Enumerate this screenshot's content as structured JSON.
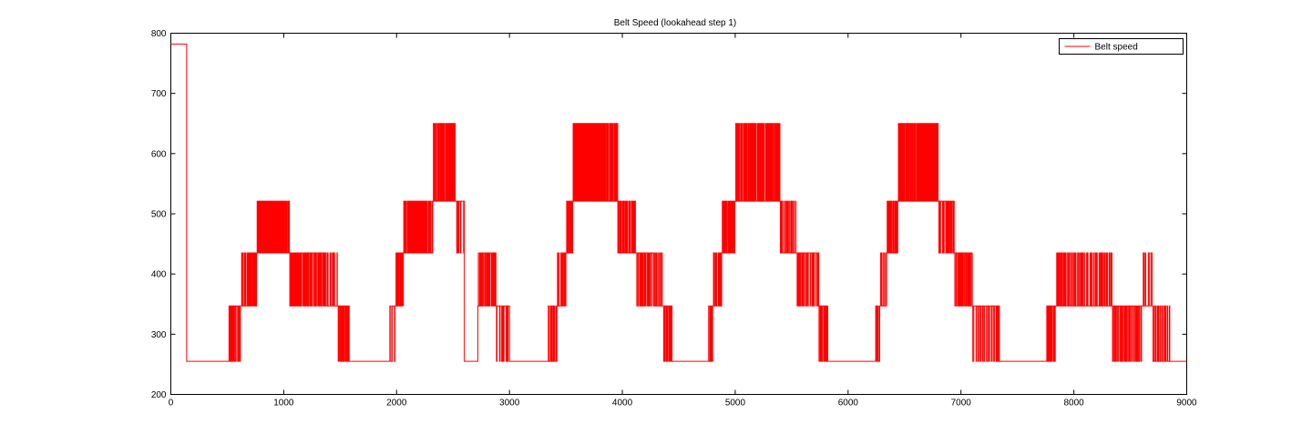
{
  "chart_data": {
    "type": "line",
    "title": "Belt Speed (lookahead step 1)",
    "xlabel": "",
    "ylabel": "",
    "xlim": [
      0,
      9000
    ],
    "ylim": [
      200,
      800
    ],
    "xticks": [
      0,
      1000,
      2000,
      3000,
      4000,
      5000,
      6000,
      7000,
      8000,
      9000
    ],
    "yticks": [
      200,
      300,
      400,
      500,
      600,
      700,
      800
    ],
    "grid": false,
    "legend_position": "top-right",
    "levels": [
      255,
      347,
      435,
      521,
      650,
      782
    ],
    "series": [
      {
        "name": "Belt speed",
        "color": "#ff0000",
        "segments": [
          {
            "x0": 0,
            "x1": 140,
            "base": 782
          },
          {
            "x0": 140,
            "x1": 510,
            "base": 255
          },
          {
            "x0": 510,
            "x1": 560,
            "base": 255,
            "alt": 347,
            "n": 5
          },
          {
            "x0": 560,
            "x1": 620,
            "base": 347,
            "alt": 255,
            "n": 4
          },
          {
            "x0": 620,
            "x1": 690,
            "base": 347,
            "alt": 435,
            "n": 6
          },
          {
            "x0": 690,
            "x1": 760,
            "base": 435,
            "alt": 347,
            "n": 8
          },
          {
            "x0": 760,
            "x1": 820,
            "base": 435,
            "alt": 521,
            "n": 7
          },
          {
            "x0": 820,
            "x1": 950,
            "base": 435,
            "alt": 521,
            "n": 18
          },
          {
            "x0": 950,
            "x1": 1050,
            "base": 435,
            "alt": 521,
            "n": 12
          },
          {
            "x0": 1050,
            "x1": 1120,
            "base": 435,
            "alt": 347,
            "n": 9
          },
          {
            "x0": 1120,
            "x1": 1360,
            "base": 435,
            "alt": 347,
            "n": 22
          },
          {
            "x0": 1360,
            "x1": 1480,
            "base": 347,
            "alt": 435,
            "n": 6
          },
          {
            "x0": 1480,
            "x1": 1580,
            "base": 347,
            "alt": 255,
            "n": 10
          },
          {
            "x0": 1580,
            "x1": 1940,
            "base": 255
          },
          {
            "x0": 1940,
            "x1": 1990,
            "base": 347,
            "alt": 255,
            "n": 2
          },
          {
            "x0": 1990,
            "x1": 2060,
            "base": 347,
            "alt": 435,
            "n": 6
          },
          {
            "x0": 2060,
            "x1": 2140,
            "base": 435,
            "alt": 521,
            "n": 8
          },
          {
            "x0": 2140,
            "x1": 2260,
            "base": 521,
            "alt": 435,
            "n": 16
          },
          {
            "x0": 2260,
            "x1": 2320,
            "base": 435,
            "alt": 521,
            "n": 5
          },
          {
            "x0": 2320,
            "x1": 2380,
            "base": 521,
            "alt": 650,
            "n": 6
          },
          {
            "x0": 2380,
            "x1": 2520,
            "base": 521,
            "alt": 650,
            "n": 16
          },
          {
            "x0": 2520,
            "x1": 2600,
            "base": 521,
            "alt": 435,
            "n": 4
          },
          {
            "x0": 2600,
            "x1": 2720,
            "base": 255
          },
          {
            "x0": 2720,
            "x1": 2760,
            "base": 347,
            "alt": 435,
            "n": 4
          },
          {
            "x0": 2760,
            "x1": 2880,
            "base": 435,
            "alt": 347,
            "n": 10
          },
          {
            "x0": 2880,
            "x1": 3000,
            "base": 347,
            "alt": 255,
            "n": 6
          },
          {
            "x0": 3000,
            "x1": 3340,
            "base": 255
          },
          {
            "x0": 3340,
            "x1": 3420,
            "base": 255,
            "alt": 347,
            "n": 6
          },
          {
            "x0": 3420,
            "x1": 3500,
            "base": 347,
            "alt": 435,
            "n": 6
          },
          {
            "x0": 3500,
            "x1": 3560,
            "base": 435,
            "alt": 521,
            "n": 6
          },
          {
            "x0": 3560,
            "x1": 3700,
            "base": 521,
            "alt": 650,
            "n": 16
          },
          {
            "x0": 3700,
            "x1": 3850,
            "base": 521,
            "alt": 650,
            "n": 22
          },
          {
            "x0": 3850,
            "x1": 3960,
            "base": 521,
            "alt": 650,
            "n": 10
          },
          {
            "x0": 3960,
            "x1": 4120,
            "base": 435,
            "alt": 521,
            "n": 14
          },
          {
            "x0": 4120,
            "x1": 4280,
            "base": 435,
            "alt": 347,
            "n": 12
          },
          {
            "x0": 4280,
            "x1": 4360,
            "base": 347,
            "alt": 435,
            "n": 5
          },
          {
            "x0": 4360,
            "x1": 4440,
            "base": 347,
            "alt": 255,
            "n": 8
          },
          {
            "x0": 4440,
            "x1": 4760,
            "base": 255
          },
          {
            "x0": 4760,
            "x1": 4800,
            "base": 255,
            "alt": 347,
            "n": 4
          },
          {
            "x0": 4800,
            "x1": 4880,
            "base": 347,
            "alt": 435,
            "n": 6
          },
          {
            "x0": 4880,
            "x1": 4960,
            "base": 435,
            "alt": 521,
            "n": 8
          },
          {
            "x0": 4960,
            "x1": 5000,
            "base": 521,
            "alt": 435,
            "n": 4
          },
          {
            "x0": 5000,
            "x1": 5400,
            "base": 521,
            "alt": 650,
            "n": 40
          },
          {
            "x0": 5400,
            "x1": 5540,
            "base": 435,
            "alt": 521,
            "n": 10
          },
          {
            "x0": 5540,
            "x1": 5740,
            "base": 435,
            "alt": 347,
            "n": 12
          },
          {
            "x0": 5740,
            "x1": 5820,
            "base": 347,
            "alt": 255,
            "n": 8
          },
          {
            "x0": 5820,
            "x1": 6240,
            "base": 255
          },
          {
            "x0": 6240,
            "x1": 6280,
            "base": 255,
            "alt": 347,
            "n": 4
          },
          {
            "x0": 6280,
            "x1": 6340,
            "base": 347,
            "alt": 435,
            "n": 4
          },
          {
            "x0": 6340,
            "x1": 6440,
            "base": 435,
            "alt": 521,
            "n": 10
          },
          {
            "x0": 6440,
            "x1": 6800,
            "base": 521,
            "alt": 650,
            "n": 40
          },
          {
            "x0": 6800,
            "x1": 6940,
            "base": 521,
            "alt": 435,
            "n": 10
          },
          {
            "x0": 6940,
            "x1": 7100,
            "base": 435,
            "alt": 347,
            "n": 14
          },
          {
            "x0": 7100,
            "x1": 7340,
            "base": 347,
            "alt": 255,
            "n": 12
          },
          {
            "x0": 7340,
            "x1": 7760,
            "base": 255
          },
          {
            "x0": 7760,
            "x1": 7840,
            "base": 347,
            "alt": 255,
            "n": 8
          },
          {
            "x0": 7840,
            "x1": 7960,
            "base": 347,
            "alt": 435,
            "n": 10
          },
          {
            "x0": 7960,
            "x1": 8340,
            "base": 347,
            "alt": 435,
            "n": 24
          },
          {
            "x0": 8340,
            "x1": 8600,
            "base": 347,
            "alt": 255,
            "n": 20
          },
          {
            "x0": 8600,
            "x1": 8700,
            "base": 347,
            "alt": 435,
            "n": 4
          },
          {
            "x0": 8700,
            "x1": 8850,
            "base": 255,
            "alt": 347,
            "n": 10
          },
          {
            "x0": 8850,
            "x1": 9000,
            "base": 255
          }
        ]
      }
    ]
  }
}
